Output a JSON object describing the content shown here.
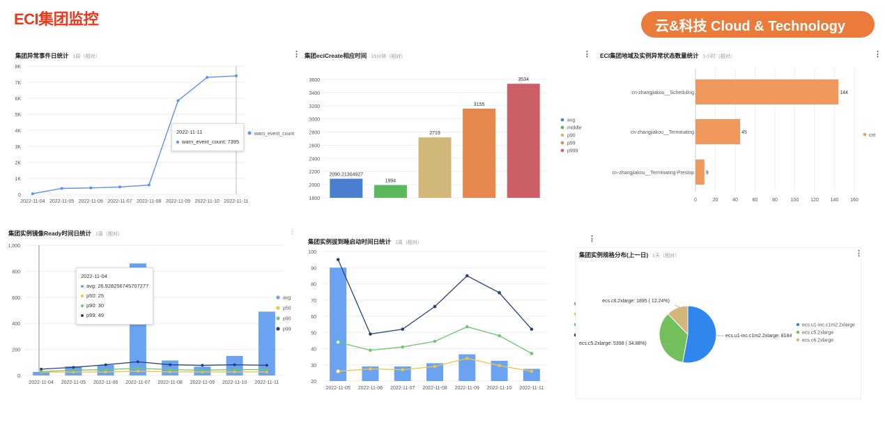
{
  "header": {
    "title": "ECI集团监控",
    "banner": "云&科技  Cloud & Technology"
  },
  "panels": {
    "p1": {
      "title": "集团异常事件日统计",
      "sub": "1周（相对）",
      "tooltip": {
        "date": "2022-11-11",
        "line": "warn_event_count: 7395"
      }
    },
    "p2": {
      "title": "集团eciCreate相应时间",
      "sub": "15分钟（相对）"
    },
    "p3": {
      "title": "ECI集团地域及实例异常状态数量统计",
      "sub": "1小时（相对）"
    },
    "p4": {
      "title": "集团实例镜像Ready时间日统计",
      "sub": "1周（相对）",
      "tooltip": {
        "date": "2022-11-04",
        "avg": "avg: 26.928256745707277",
        "p50": "p50: 25",
        "p90": "p90: 30",
        "p99": "p99: 49"
      }
    },
    "p5": {
      "title": "集团实例拔到睡启动时间日统计",
      "sub": "1周（相对）"
    },
    "p6": {
      "title": "集团实例规格分布(上一日)",
      "sub": "1天（相对）"
    }
  },
  "chart_data": [
    {
      "id": "p1",
      "type": "line",
      "x": [
        "2022-11-04",
        "2022-11-05",
        "2022-11-06",
        "2022-11-07",
        "2022-11-08",
        "2022-11-09",
        "2022-11-10",
        "2022-11-11"
      ],
      "series": [
        {
          "name": "warn_event_count",
          "values": [
            40,
            370,
            400,
            460,
            580,
            5850,
            7300,
            7395
          ],
          "color": "#5b8ff9"
        }
      ],
      "ylim": [
        0,
        8000
      ],
      "yticks": [
        0,
        1000,
        2000,
        3000,
        4000,
        5000,
        6000,
        7000,
        8000
      ],
      "yticklabels": [
        "0",
        "1K",
        "2K",
        "3K",
        "4K",
        "5K",
        "6K",
        "7K",
        "8K"
      ],
      "legend": "right"
    },
    {
      "id": "p2",
      "type": "bar",
      "categories": [
        "avg",
        "middle",
        "p90",
        "p99",
        "p999"
      ],
      "values": [
        2090.21304927,
        1994,
        2719,
        3155,
        3534
      ],
      "labels": [
        "2090.21304927",
        "1994",
        "2719",
        "3155",
        "3534"
      ],
      "colors": [
        "#4a7fcf",
        "#5cb85c",
        "#d2b77a",
        "#e5874f",
        "#cc5e66"
      ],
      "ylim": [
        1800,
        3600
      ],
      "yticks": [
        1800,
        2000,
        2200,
        2400,
        2600,
        2800,
        3000,
        3200,
        3400,
        3600
      ],
      "legend": "right"
    },
    {
      "id": "p3",
      "type": "bar",
      "orientation": "horizontal",
      "categories": [
        "cn-zhangjiakou__Scheduling",
        "cn-zhangjiakou__Terminating",
        "cn-zhangjiakou__Terminating-Prestop"
      ],
      "series": [
        {
          "name": "cnt",
          "values": [
            144,
            45,
            9
          ],
          "color": "#f0995f"
        }
      ],
      "xlim": [
        0,
        160
      ],
      "xticks": [
        0,
        20,
        40,
        60,
        80,
        100,
        120,
        140,
        160
      ],
      "legend": "right"
    },
    {
      "id": "p4",
      "type": "bar",
      "x": [
        "2022-11-04",
        "2022-11-05",
        "2022-11-06",
        "2022-11-07",
        "2022-11-08",
        "2022-11-09",
        "2022-11-10",
        "2022-11-11"
      ],
      "series": [
        {
          "name": "avg",
          "kind": "bar",
          "values": [
            27,
            70,
            80,
            860,
            115,
            68,
            150,
            490
          ],
          "color": "#6aa3f2"
        },
        {
          "name": "p50",
          "kind": "line",
          "values": [
            25,
            26,
            27,
            33,
            28,
            27,
            27,
            27
          ],
          "color": "#f5c242"
        },
        {
          "name": "p90",
          "kind": "line",
          "values": [
            30,
            40,
            45,
            55,
            45,
            40,
            45,
            45
          ],
          "color": "#6dc76d"
        },
        {
          "name": "p99",
          "kind": "line",
          "values": [
            49,
            62,
            82,
            105,
            82,
            78,
            82,
            78
          ],
          "color": "#2c3e7a"
        }
      ],
      "ylim": [
        0,
        1000
      ],
      "yticks": [
        0,
        200,
        400,
        600,
        800,
        1000
      ],
      "yticklabels": [
        "0",
        "200",
        "400",
        "600",
        "800",
        "1,000"
      ],
      "legend": "right"
    },
    {
      "id": "p5",
      "type": "bar",
      "x": [
        "2022-11-05",
        "2022-11-06",
        "2022-11-07",
        "2022-11-08",
        "2022-11-09",
        "2022-11-10",
        "2022-11-11"
      ],
      "series": [
        {
          "name": "bar",
          "kind": "bar",
          "values": [
            90,
            29,
            29,
            31,
            36.5,
            32.5,
            27.5
          ],
          "color": "#6aa3f2"
        },
        {
          "name": "p50",
          "kind": "line",
          "values": [
            26,
            27.5,
            27,
            29,
            34,
            29.5,
            26
          ],
          "color": "#f5c242"
        },
        {
          "name": "p90",
          "kind": "line",
          "values": [
            44,
            39,
            41,
            44.5,
            53.5,
            48,
            37
          ],
          "color": "#6dc76d"
        },
        {
          "name": "p99",
          "kind": "line",
          "values": [
            95,
            49,
            52,
            66,
            85,
            74.5,
            52
          ],
          "color": "#2c3e7a"
        }
      ],
      "ylim": [
        20,
        100
      ],
      "yticks": [
        20,
        30,
        40,
        50,
        60,
        70,
        80,
        90,
        100
      ]
    },
    {
      "id": "p6",
      "type": "pie",
      "series": [
        {
          "name": "ecs.u1-inc.c1m2.2xlarge",
          "value": 8184,
          "label": "ecs.u1-inc.c1m2.2xlarge: 8184",
          "color": "#2f86eb"
        },
        {
          "name": "ecs.c5.2xlarge",
          "value": 5398,
          "label": "ecs.c5.2xlarge: 5398 ( 34.88%)",
          "color": "#73bf5c"
        },
        {
          "name": "ecs.c6.2xlarge",
          "value": 1895,
          "label": "ecs.c6.2xlarge: 1895 ( 12.24%)",
          "color": "#d4b67d"
        }
      ],
      "legend": "right"
    }
  ]
}
